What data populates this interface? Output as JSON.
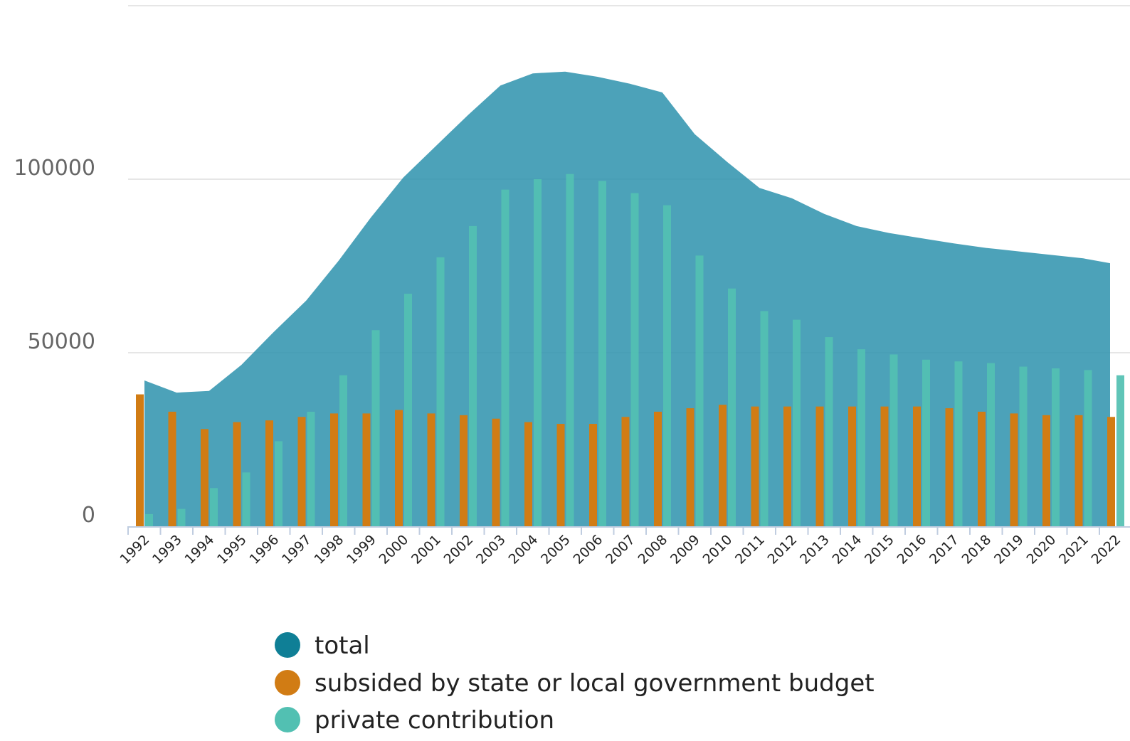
{
  "colors": {
    "total": "#2f93ad",
    "subsided": "#d17c14",
    "private": "#52c0b2",
    "grid": "#e6e6e6",
    "axis": "#c0cde0",
    "legend_total": "#0f7f96"
  },
  "chart_data": {
    "type": "bar",
    "categories": [
      "1992",
      "1993",
      "1994",
      "1995",
      "1996",
      "1997",
      "1998",
      "1999",
      "2000",
      "2001",
      "2002",
      "2003",
      "2004",
      "2005",
      "2006",
      "2007",
      "2008",
      "2009",
      "2010",
      "2011",
      "2012",
      "2013",
      "2014",
      "2015",
      "2016",
      "2017",
      "2018",
      "2019",
      "2020",
      "2021",
      "2022"
    ],
    "ylim": [
      0,
      150000
    ],
    "yticks": [
      "0",
      "50000",
      "100000"
    ],
    "grid": true,
    "legend": "bottom",
    "series": [
      {
        "name": "total",
        "kind": "area",
        "values": [
          42000,
          38500,
          39000,
          46500,
          56000,
          65000,
          76500,
          89000,
          100500,
          109500,
          118500,
          127000,
          130500,
          131000,
          129500,
          127500,
          125000,
          113000,
          105000,
          97500,
          94500,
          90000,
          86500,
          84500,
          83000,
          81500,
          80200,
          79200,
          78200,
          77200,
          75800
        ]
      },
      {
        "name": "subsided by state or local government budget",
        "kind": "bar",
        "values": [
          38000,
          33000,
          28000,
          30000,
          30500,
          31500,
          32500,
          32500,
          33500,
          32500,
          32000,
          31000,
          30000,
          29500,
          29500,
          31500,
          33000,
          34000,
          35000,
          34500,
          34500,
          34500,
          34500,
          34500,
          34500,
          34000,
          33000,
          32500,
          32000,
          32000,
          31500
        ]
      },
      {
        "name": "private contribution",
        "kind": "bar",
        "values": [
          3500,
          5000,
          11000,
          15500,
          24500,
          33000,
          43500,
          56500,
          67000,
          77500,
          86500,
          97000,
          100000,
          101500,
          99500,
          96000,
          92500,
          78000,
          68500,
          62000,
          59500,
          54500,
          51000,
          49500,
          48000,
          47500,
          47000,
          46000,
          45500,
          45000,
          43500
        ]
      }
    ]
  }
}
